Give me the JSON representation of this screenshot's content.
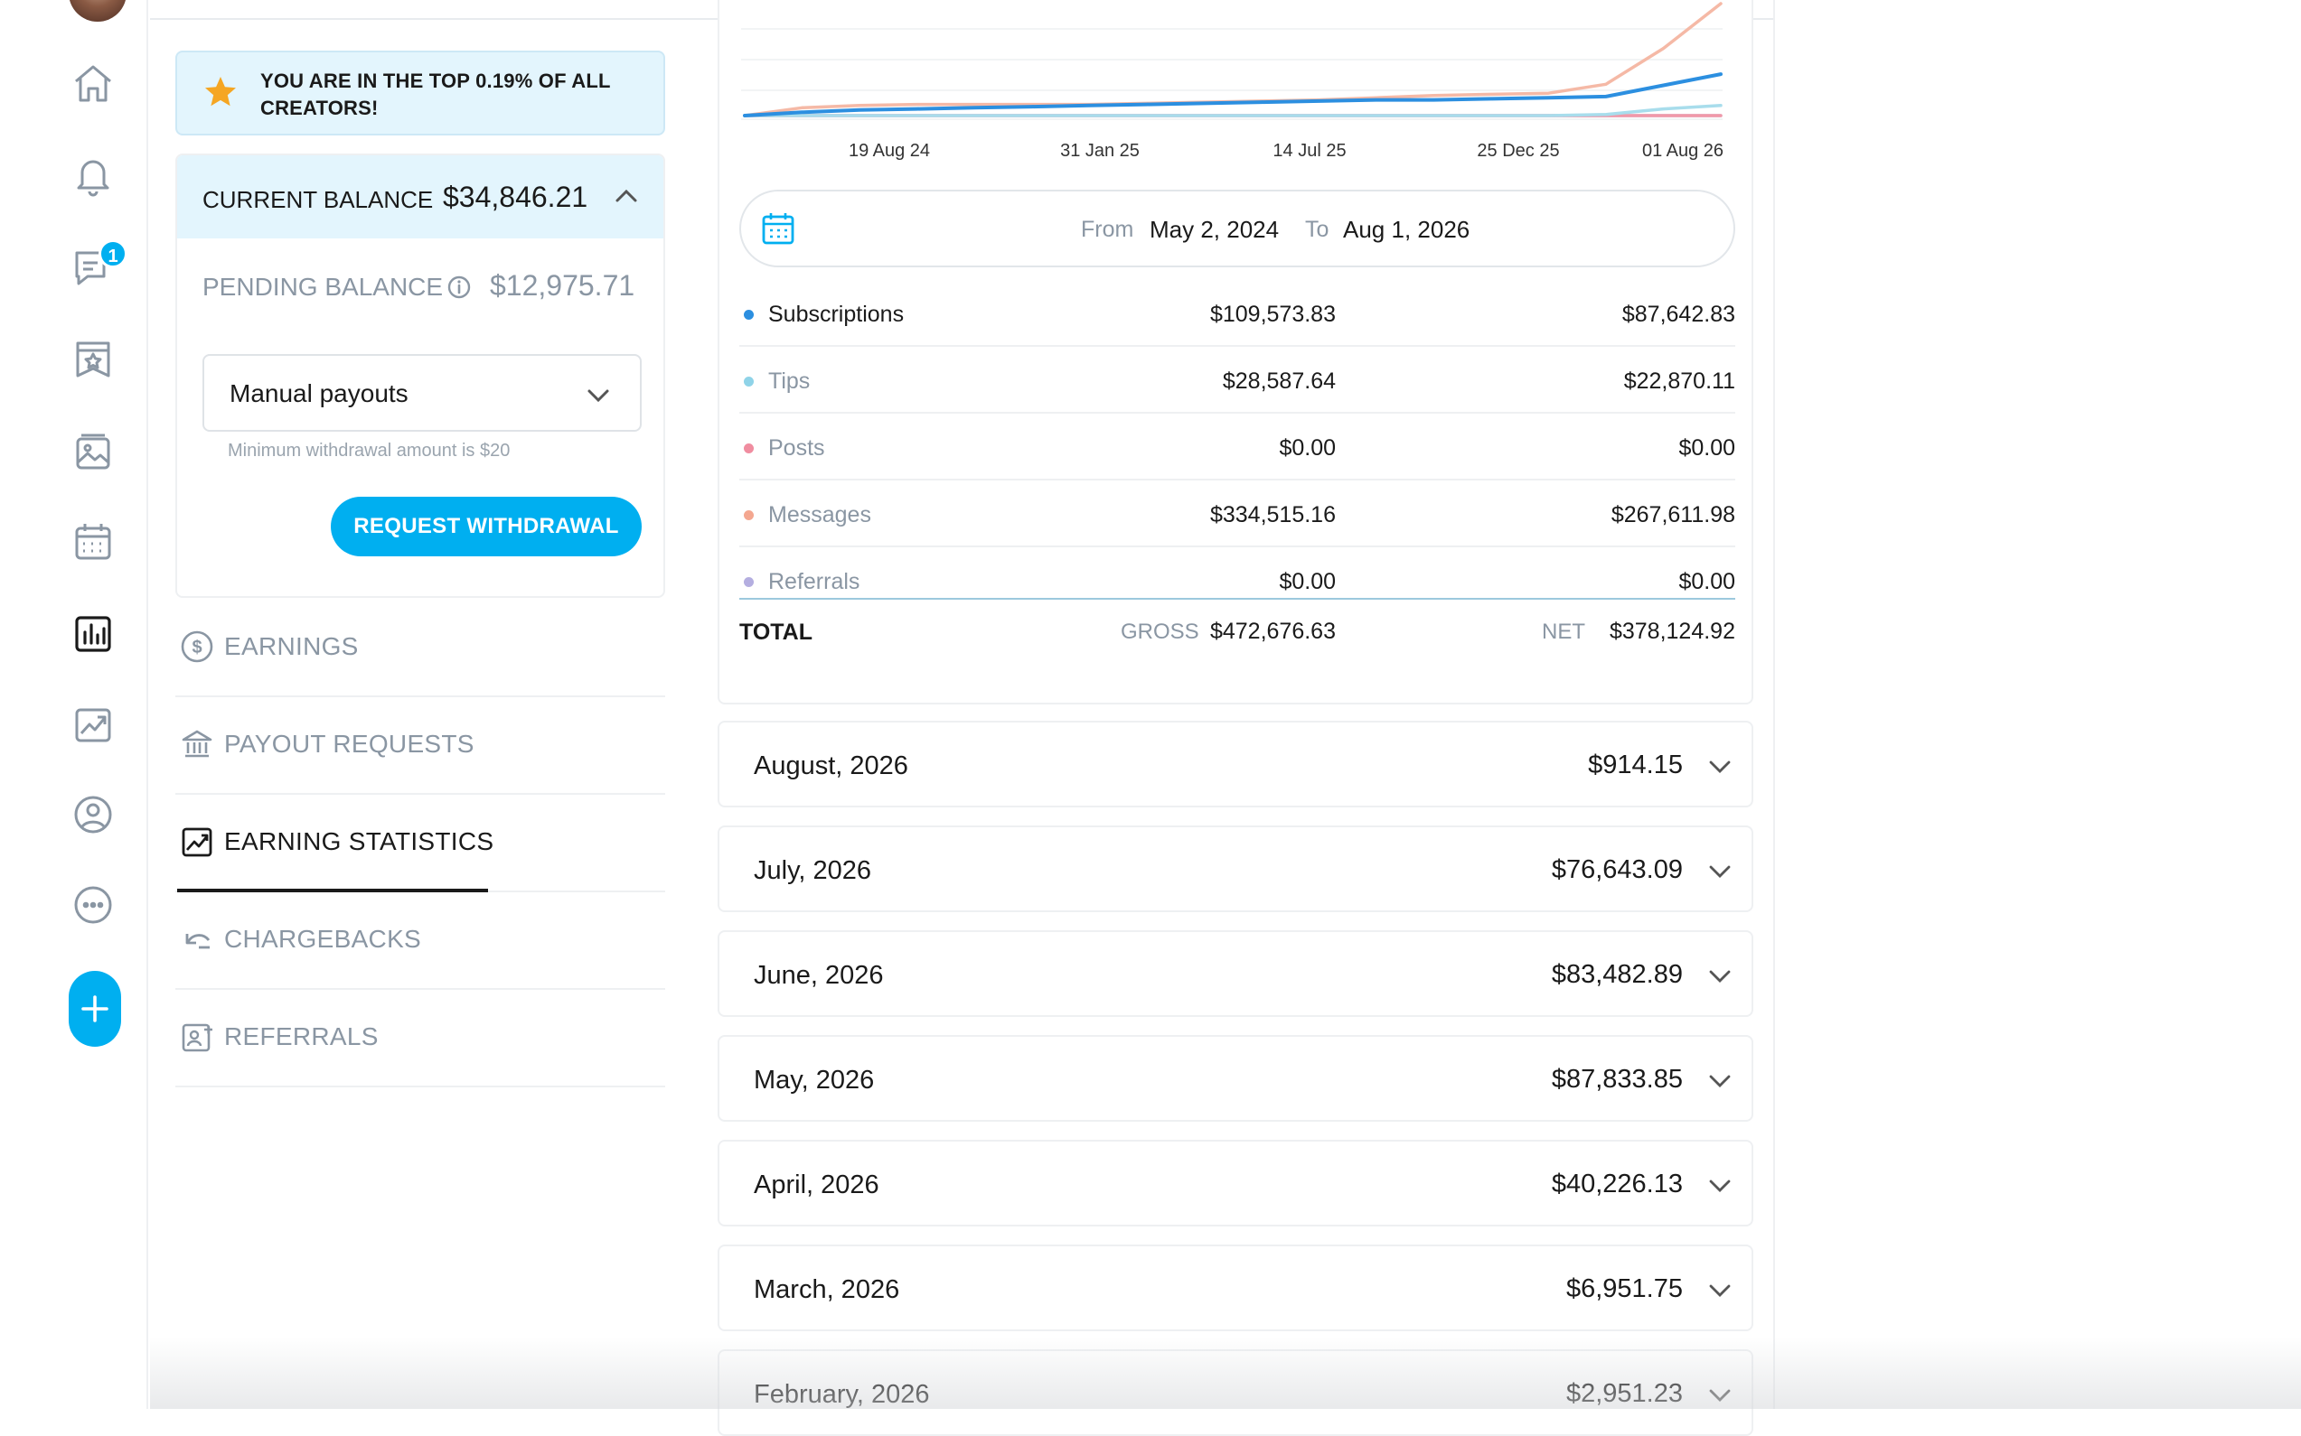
{
  "rail": {
    "items": [
      {
        "icon": "home-icon"
      },
      {
        "icon": "bell-icon"
      },
      {
        "icon": "messages-icon",
        "badge": "1"
      },
      {
        "icon": "collections-icon"
      },
      {
        "icon": "vault-icon"
      },
      {
        "icon": "calendar-icon"
      },
      {
        "icon": "statistics-icon",
        "active": true
      },
      {
        "icon": "analytics-icon"
      },
      {
        "icon": "profile-icon"
      },
      {
        "icon": "more-icon"
      }
    ],
    "new_post_icon": "plus-icon"
  },
  "banner": {
    "icon": "star-icon",
    "text": "YOU ARE IN THE TOP 0.19% OF ALL CREATORS!"
  },
  "balance": {
    "current_label": "CURRENT BALANCE",
    "current_value": "$34,846.21",
    "pending_label": "PENDING BALANCE",
    "pending_value": "$12,975.71",
    "payout_method": "Manual payouts",
    "min_note": "Minimum withdrawal amount is $20",
    "withdraw_label": "REQUEST WITHDRAWAL"
  },
  "side_nav": [
    {
      "label": "EARNINGS",
      "icon": "dollar-circle-icon",
      "active": false
    },
    {
      "label": "PAYOUT REQUESTS",
      "icon": "bank-icon",
      "active": false
    },
    {
      "label": "EARNING STATISTICS",
      "icon": "chart-trend-icon",
      "active": true
    },
    {
      "label": "CHARGEBACKS",
      "icon": "undo-arrow-icon",
      "active": false
    },
    {
      "label": "REFERRALS",
      "icon": "referral-card-icon",
      "active": false
    }
  ],
  "chart_data": {
    "type": "line",
    "x_ticks": [
      "19 Aug 24",
      "31 Jan 25",
      "14 Jul 25",
      "25 Dec 25",
      "01 Aug 26"
    ],
    "series": [
      {
        "name": "Subscriptions",
        "color": "#2c8fe0",
        "values": [
          0,
          3,
          5,
          6,
          7,
          8,
          9,
          10,
          11,
          12,
          13,
          14,
          14,
          15,
          16,
          17,
          27,
          37
        ]
      },
      {
        "name": "Tips",
        "color": "#a8ddec",
        "values": [
          0,
          0,
          0,
          0,
          0,
          0,
          0,
          0,
          0,
          0,
          0,
          0,
          0,
          0,
          0,
          1,
          6,
          9
        ]
      },
      {
        "name": "Posts",
        "color": "#f199a8",
        "values": [
          0,
          0,
          0,
          0,
          0,
          0,
          0,
          0,
          0,
          0,
          0,
          0,
          0,
          0,
          0,
          0,
          0,
          0
        ]
      },
      {
        "name": "Messages",
        "color": "#f5b9a6",
        "values": [
          0,
          7,
          9,
          10,
          10,
          10,
          10,
          11,
          12,
          13,
          14,
          16,
          18,
          19,
          20,
          28,
          60,
          100
        ]
      },
      {
        "name": "Referrals",
        "color": "#b9b3e0",
        "values": [
          0,
          0,
          0,
          0,
          0,
          0,
          0,
          0,
          0,
          0,
          0,
          0,
          0,
          0,
          0,
          0,
          0,
          0
        ]
      }
    ]
  },
  "date_range": {
    "icon": "calendar-icon",
    "from_label": "From",
    "from_value": "May 2, 2024",
    "to_label": "To",
    "to_value": "Aug 1, 2026"
  },
  "stats": {
    "rows": [
      {
        "name": "Subscriptions",
        "color": "#2c8fe0",
        "gross": "$109,573.83",
        "net": "$87,642.83"
      },
      {
        "name": "Tips",
        "color": "#8fd3e8",
        "gross": "$28,587.64",
        "net": "$22,870.11"
      },
      {
        "name": "Posts",
        "color": "#f08da0",
        "gross": "$0.00",
        "net": "$0.00"
      },
      {
        "name": "Messages",
        "color": "#f4a790",
        "gross": "$334,515.16",
        "net": "$267,611.98"
      },
      {
        "name": "Referrals",
        "color": "#b4aee0",
        "gross": "$0.00",
        "net": "$0.00"
      }
    ],
    "total_label": "TOTAL",
    "gross_label": "GROSS",
    "gross_total": "$472,676.63",
    "net_label": "NET",
    "net_total": "$378,124.92"
  },
  "months": [
    {
      "label": "August, 2026",
      "value": "$914.15"
    },
    {
      "label": "July, 2026",
      "value": "$76,643.09"
    },
    {
      "label": "June, 2026",
      "value": "$83,482.89"
    },
    {
      "label": "May, 2026",
      "value": "$87,833.85"
    },
    {
      "label": "April, 2026",
      "value": "$40,226.13"
    },
    {
      "label": "March, 2026",
      "value": "$6,951.75"
    },
    {
      "label": "February, 2026",
      "value": "$2,951.23"
    }
  ]
}
